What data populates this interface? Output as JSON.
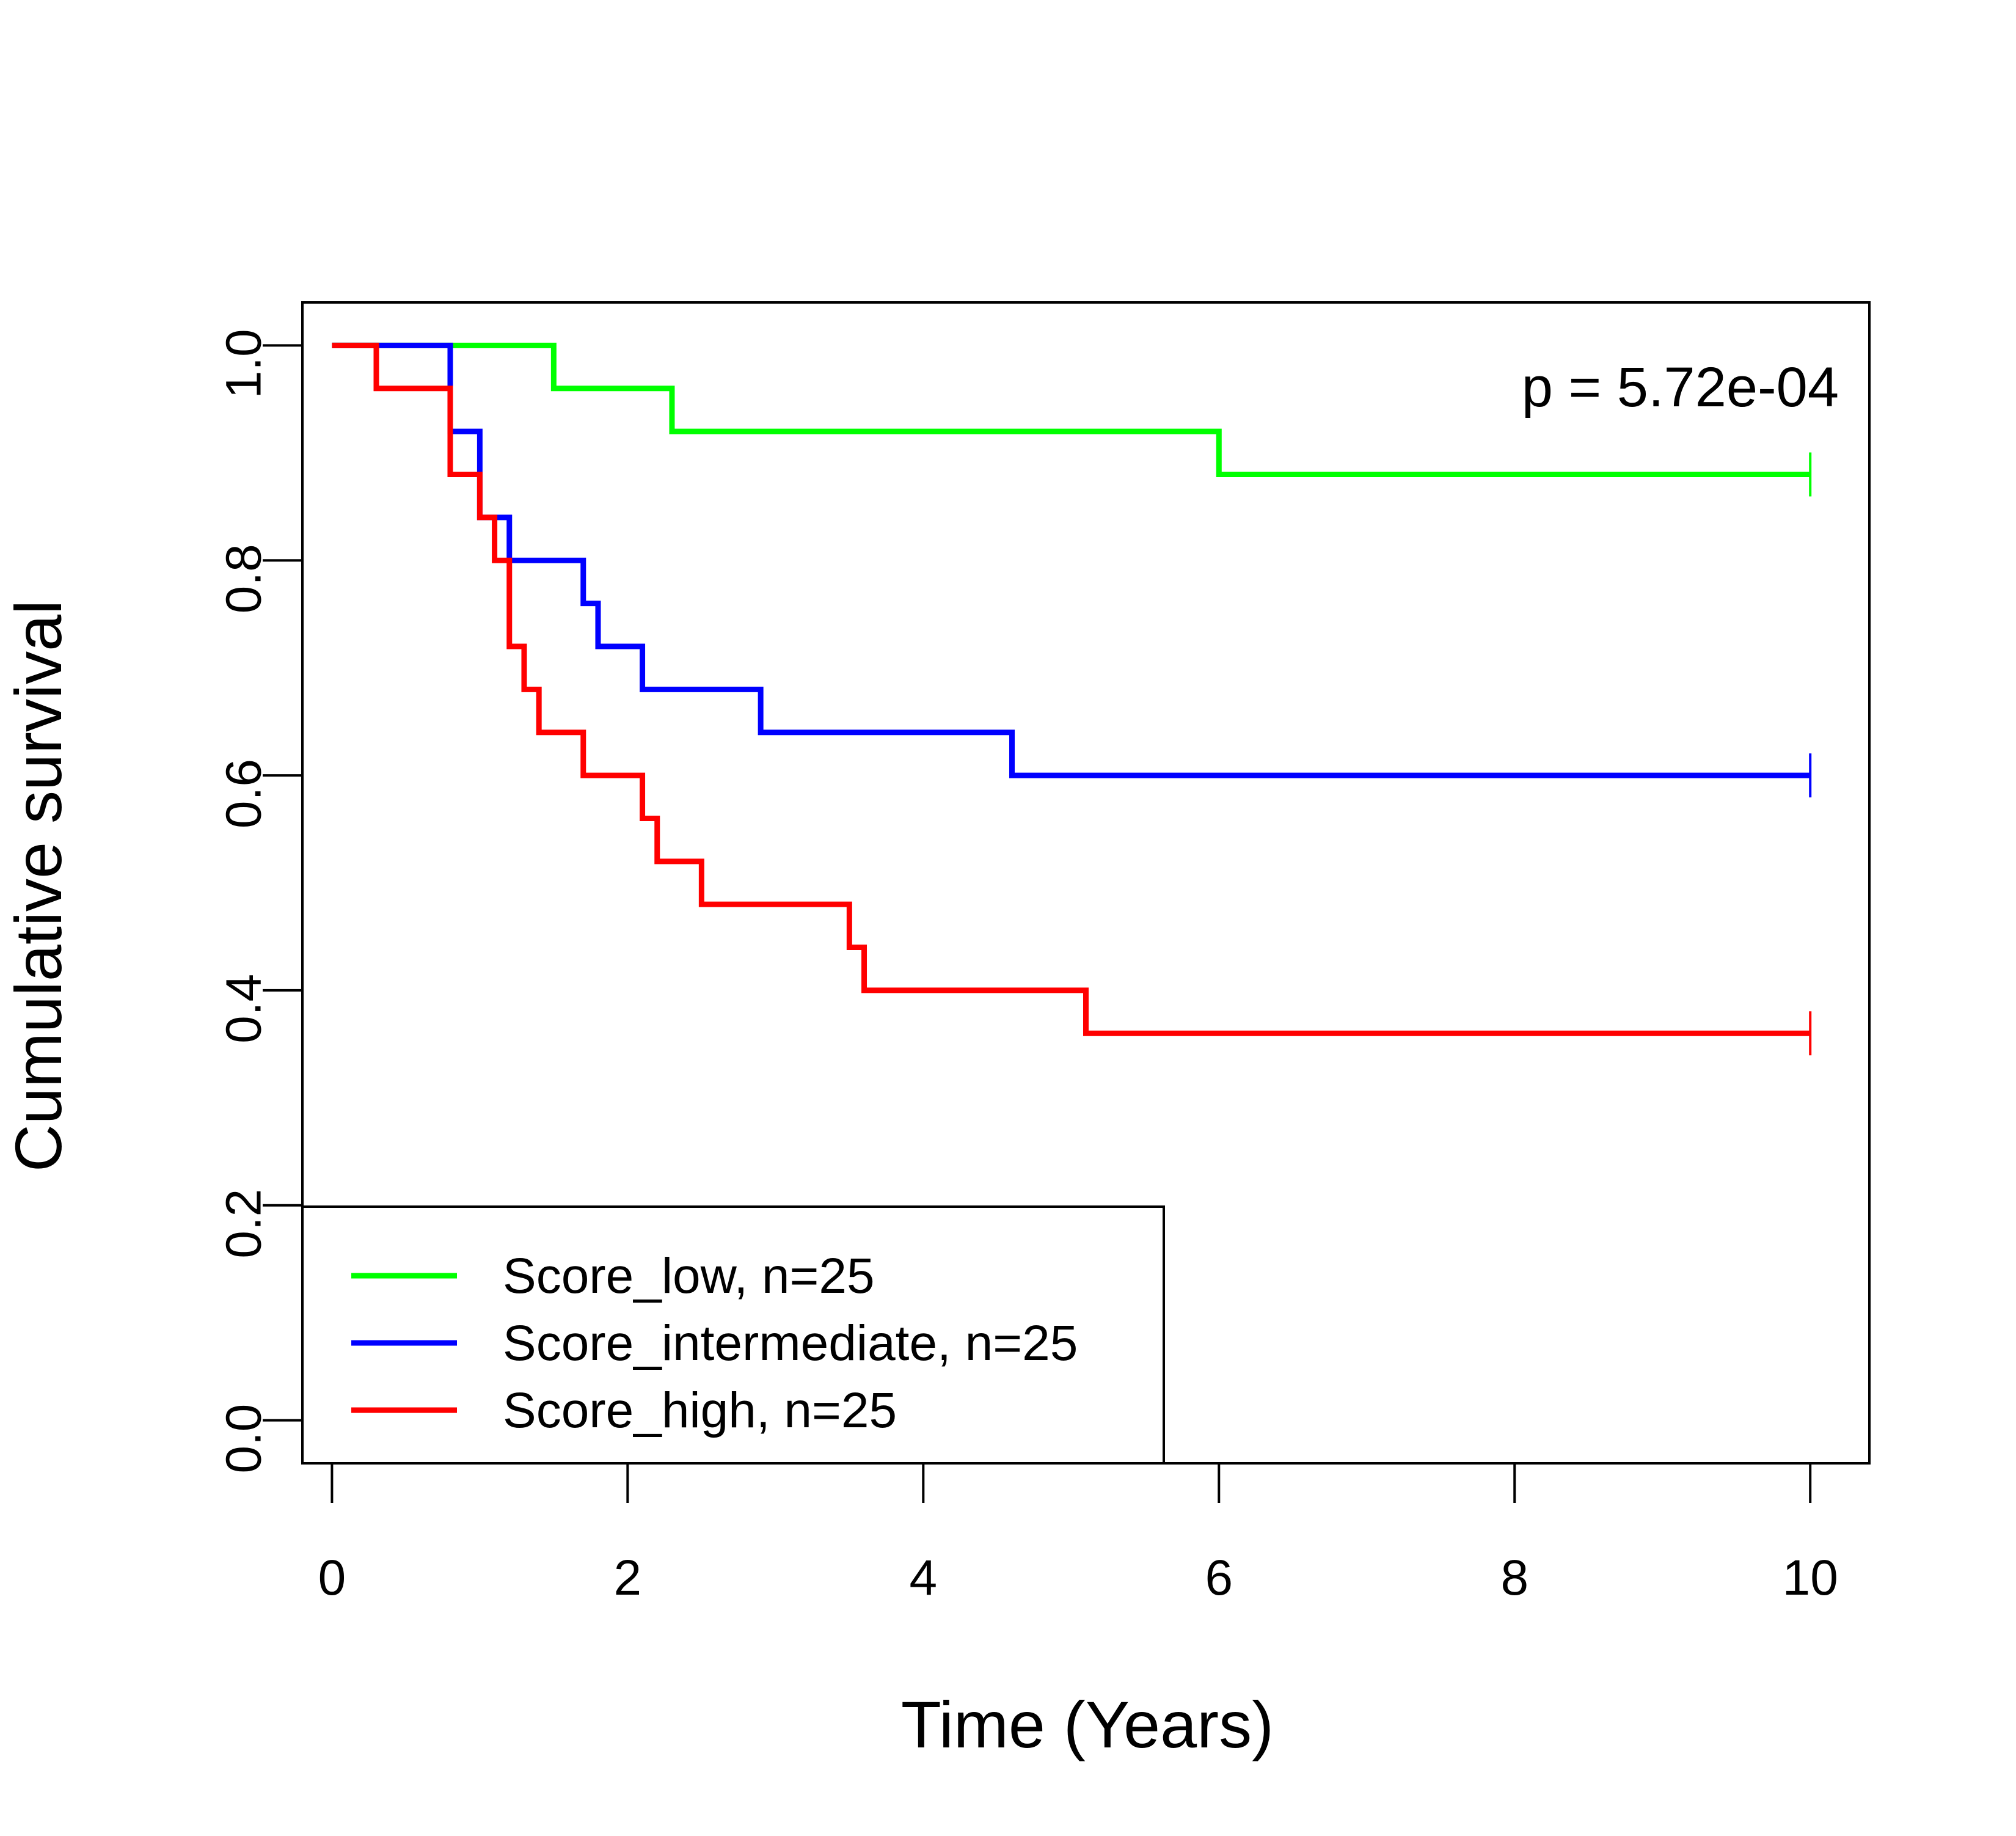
{
  "chart_data": {
    "type": "line",
    "title": "",
    "xlabel": "Time (Years)",
    "ylabel": "Cumulative survival",
    "xlim": [
      -0.2,
      10.4
    ],
    "ylim": [
      -0.04,
      1.04
    ],
    "x_ticks": [
      0,
      2,
      4,
      6,
      8,
      10
    ],
    "x_tick_labels": [
      "0",
      "2",
      "4",
      "6",
      "8",
      "10"
    ],
    "y_ticks": [
      0.0,
      0.2,
      0.4,
      0.6,
      0.8,
      1.0
    ],
    "y_tick_labels": [
      "0.0",
      "0.2",
      "0.4",
      "0.6",
      "0.8",
      "1.0"
    ],
    "grid": false,
    "legend_position": "bottom-left",
    "annotation": "p = 5.72e-04",
    "series": [
      {
        "name": "Score_low, n=25",
        "color": "#00ff00",
        "step": true,
        "x": [
          0,
          1.5,
          2.3,
          6.0,
          10.0
        ],
        "y": [
          1.0,
          0.96,
          0.92,
          0.88,
          0.88
        ],
        "censor_x": 10.0
      },
      {
        "name": "Score_intermediate, n=25",
        "color": "#0000ff",
        "step": true,
        "x": [
          0,
          0.8,
          1.0,
          1.2,
          1.7,
          1.8,
          2.1,
          2.9,
          4.6,
          10.0
        ],
        "y": [
          1.0,
          0.92,
          0.84,
          0.8,
          0.76,
          0.72,
          0.68,
          0.64,
          0.6,
          0.6
        ],
        "censor_x": 10.0
      },
      {
        "name": "Score_high, n=25",
        "color": "#ff0000",
        "step": true,
        "x": [
          0,
          0.3,
          0.8,
          1.0,
          1.1,
          1.2,
          1.3,
          1.4,
          1.7,
          2.1,
          2.2,
          2.5,
          3.5,
          3.6,
          5.1,
          10.0
        ],
        "y": [
          1.0,
          0.96,
          0.88,
          0.84,
          0.8,
          0.72,
          0.68,
          0.64,
          0.6,
          0.56,
          0.52,
          0.48,
          0.44,
          0.4,
          0.36,
          0.36
        ],
        "censor_x": 10.0
      }
    ]
  }
}
